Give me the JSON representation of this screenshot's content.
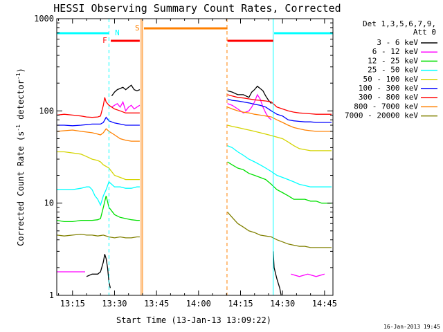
{
  "chart_data": {
    "type": "line",
    "title": "HESSI Observing Summary Count Rates, Corrected",
    "xlabel": "Start Time (13-Jan-13 13:09:22)",
    "ylabel_main": "Corrected Count Rate (s",
    "ylabel_sup1": "-1",
    "ylabel_mid": " detector",
    "ylabel_sup2": "-1",
    "ylabel_end": ")",
    "y_scale": "log",
    "ylim": [
      1,
      1000
    ],
    "xlim": [
      "13:09:22",
      "14:48:00"
    ],
    "x_ticks": [
      "13:15",
      "13:30",
      "13:45",
      "14:00",
      "14:15",
      "14:30",
      "14:45"
    ],
    "y_ticks": [
      "1",
      "10",
      "100",
      "1000"
    ],
    "footer": "16-Jan-2013 19:45",
    "legend": {
      "header1": "Det 1,3,5,6,7,9,",
      "header2": "Att 0",
      "entries": [
        {
          "label": "3 - 6 keV",
          "color": "#000000"
        },
        {
          "label": "6 - 12 keV",
          "color": "#ff00ff"
        },
        {
          "label": "12 - 25 keV",
          "color": "#00e000"
        },
        {
          "label": "25 - 50 keV",
          "color": "#00ffff"
        },
        {
          "label": "50 - 100 keV",
          "color": "#d4d400"
        },
        {
          "label": "100 - 300 keV",
          "color": "#0000ff"
        },
        {
          "label": "300 - 800 keV",
          "color": "#ff0000"
        },
        {
          "label": "800 - 7000 keV",
          "color": "#ff8000"
        },
        {
          "label": "7000 - 20000 keV",
          "color": "#808000"
        }
      ]
    },
    "status_bars": [
      {
        "label": "",
        "color": "#00ffff",
        "start": "13:09:30",
        "end": "13:28:00"
      },
      {
        "label": "N",
        "color": "#00ffff",
        "start": "13:28:40",
        "end": "13:29:00"
      },
      {
        "label": "F",
        "color": "#ff0000",
        "start": "13:28:40",
        "end": "13:39:00"
      },
      {
        "label": "S",
        "color": "#ff8000",
        "start": "13:40:30",
        "end": "14:10:20"
      },
      {
        "label": "",
        "color": "#ff0000",
        "start": "14:10:20",
        "end": "14:26:40"
      },
      {
        "label": "",
        "color": "#00ffff",
        "start": "14:27:00",
        "end": "14:48:00"
      }
    ],
    "markers": [
      {
        "time": "13:28:00",
        "color": "#00ffff",
        "style": "dashed"
      },
      {
        "time": "13:39:30",
        "color": "#ff8000",
        "style": "solid"
      },
      {
        "time": "13:40:00",
        "color": "#ff8000",
        "style": "solid"
      },
      {
        "time": "14:10:10",
        "color": "#ff8000",
        "style": "dashed"
      },
      {
        "time": "14:26:40",
        "color": "#00ffff",
        "style": "solid"
      },
      {
        "time": "14:48:00",
        "color": "#00ffff",
        "style": "dashed"
      }
    ],
    "series": [
      {
        "name": "3 - 6 keV",
        "color": "#000000",
        "segments": [
          {
            "x": [
              "13:20",
              "13:22",
              "13:24",
              "13:25",
              "13:26",
              "13:26:30",
              "13:27",
              "13:27:30",
              "13:28",
              "13:28:30"
            ],
            "y": [
              1.6,
              1.7,
              1.7,
              1.8,
              2.3,
              2.8,
              2.5,
              2.0,
              1.4,
              1.2
            ]
          },
          {
            "x": [
              "13:29",
              "13:30",
              "13:31",
              "13:32",
              "13:33",
              "13:34",
              "13:35",
              "13:36",
              "13:37",
              "13:38",
              "13:39"
            ],
            "y": [
              145,
              160,
              170,
              175,
              180,
              170,
              180,
              190,
              170,
              165,
              170
            ]
          },
          {
            "x": [
              "14:10:20",
              "14:12",
              "14:14",
              "14:16",
              "14:18",
              "14:19",
              "14:20",
              "14:21",
              "14:22",
              "14:23",
              "14:24",
              "14:25",
              "14:26"
            ],
            "y": [
              165,
              160,
              150,
              150,
              140,
              160,
              170,
              185,
              175,
              165,
              145,
              130,
              120
            ]
          },
          {
            "x": [
              "14:26:40",
              "14:27",
              "14:28",
              "14:29",
              "14:29:30"
            ],
            "y": [
              3.0,
              2.0,
              1.5,
              1.2,
              1.0
            ]
          }
        ]
      },
      {
        "name": "6 - 12 keV",
        "color": "#ff00ff",
        "segments": [
          {
            "x": [
              "13:09:30",
              "13:12",
              "13:15",
              "13:18",
              "13:19:30"
            ],
            "y": [
              1.8,
              1.8,
              1.8,
              1.8,
              1.8
            ]
          },
          {
            "x": [
              "13:29",
              "13:30",
              "13:31",
              "13:32",
              "13:33",
              "13:34",
              "13:35",
              "13:36",
              "13:37",
              "13:38",
              "13:39"
            ],
            "y": [
              110,
              115,
              120,
              110,
              125,
              100,
              110,
              115,
              105,
              110,
              115
            ]
          },
          {
            "x": [
              "14:10:20",
              "14:12",
              "14:14",
              "14:16",
              "14:18",
              "14:19",
              "14:20",
              "14:21",
              "14:22",
              "14:23",
              "14:24",
              "14:25",
              "14:26"
            ],
            "y": [
              120,
              115,
              105,
              95,
              100,
              110,
              125,
              150,
              135,
              110,
              95,
              85,
              80
            ]
          },
          {
            "x": [
              "14:33",
              "14:36",
              "14:39",
              "14:42",
              "14:45"
            ],
            "y": [
              1.7,
              1.6,
              1.7,
              1.6,
              1.7
            ]
          }
        ]
      },
      {
        "name": "12 - 25 keV",
        "color": "#00e000",
        "segments": [
          {
            "x": [
              "13:09:30",
              "13:12",
              "13:15",
              "13:18",
              "13:20",
              "13:22",
              "13:24",
              "13:25",
              "13:26",
              "13:27",
              "13:28",
              "13:30",
              "13:32",
              "13:34",
              "13:36",
              "13:38",
              "13:39"
            ],
            "y": [
              6.5,
              6.3,
              6.3,
              6.5,
              6.5,
              6.5,
              6.6,
              6.8,
              9,
              12,
              9,
              7.5,
              7,
              6.8,
              6.6,
              6.5,
              6.5
            ]
          },
          {
            "x": [
              "14:10:20",
              "14:12",
              "14:14",
              "14:16",
              "14:18",
              "14:20",
              "14:22",
              "14:24",
              "14:26",
              "14:28",
              "14:30",
              "14:32",
              "14:34",
              "14:36",
              "14:38",
              "14:40",
              "14:42",
              "14:44",
              "14:46",
              "14:47:30"
            ],
            "y": [
              28,
              26,
              24,
              23,
              21,
              20,
              19,
              18,
              16,
              14,
              13,
              12,
              11,
              11,
              11,
              10.5,
              10.5,
              10,
              10,
              10
            ]
          }
        ]
      },
      {
        "name": "25 - 50 keV",
        "color": "#00ffff",
        "segments": [
          {
            "x": [
              "13:09:30",
              "13:12",
              "13:15",
              "13:18",
              "13:20",
              "13:21",
              "13:22",
              "13:23",
              "13:24",
              "13:25",
              "13:26",
              "13:27",
              "13:28",
              "13:29",
              "13:30",
              "13:32",
              "13:34",
              "13:36",
              "13:38",
              "13:39"
            ],
            "y": [
              14,
              14,
              14,
              14.5,
              15,
              15,
              14,
              12,
              11,
              9.5,
              12,
              14,
              17,
              16,
              15,
              15,
              14.5,
              14.5,
              15,
              15
            ]
          },
          {
            "x": [
              "14:10:20",
              "14:12",
              "14:14",
              "14:16",
              "14:18",
              "14:20",
              "14:22",
              "14:24",
              "14:26",
              "14:28",
              "14:30",
              "14:32",
              "14:34",
              "14:36",
              "14:38",
              "14:40",
              "14:42",
              "14:44",
              "14:46",
              "14:47:30"
            ],
            "y": [
              42,
              40,
              36,
              33,
              30,
              28,
              26,
              24,
              22,
              20,
              19,
              18,
              17,
              16,
              15.5,
              15,
              15,
              15,
              15,
              15
            ]
          }
        ]
      },
      {
        "name": "50 - 100 keV",
        "color": "#d4d400",
        "segments": [
          {
            "x": [
              "13:09:30",
              "13:12",
              "13:15",
              "13:18",
              "13:20",
              "13:22",
              "13:24",
              "13:25",
              "13:26",
              "13:27",
              "13:28",
              "13:30",
              "13:32",
              "13:34",
              "13:36",
              "13:38",
              "13:39"
            ],
            "y": [
              36,
              36,
              35,
              34,
              32,
              30,
              29,
              28,
              26,
              25,
              24,
              20,
              19,
              18,
              18,
              18,
              18
            ]
          },
          {
            "x": [
              "14:10:20",
              "14:12",
              "14:14",
              "14:16",
              "14:18",
              "14:20",
              "14:22",
              "14:24",
              "14:26",
              "14:28",
              "14:30",
              "14:32",
              "14:34",
              "14:36",
              "14:38",
              "14:40",
              "14:42",
              "14:44",
              "14:46",
              "14:47:30"
            ],
            "y": [
              70,
              68,
              66,
              64,
              62,
              60,
              58,
              56,
              54,
              52,
              50,
              46,
              42,
              39,
              38,
              37,
              37,
              37,
              37,
              37
            ]
          }
        ]
      },
      {
        "name": "100 - 300 keV",
        "color": "#0000ff",
        "segments": [
          {
            "x": [
              "13:09:30",
              "13:12",
              "13:15",
              "13:18",
              "13:20",
              "13:22",
              "13:24",
              "13:25",
              "13:26",
              "13:27",
              "13:28",
              "13:30",
              "13:32",
              "13:34",
              "13:36",
              "13:38",
              "13:39"
            ],
            "y": [
              70,
              70,
              69,
              70,
              71,
              72,
              72,
              72,
              75,
              85,
              78,
              74,
              72,
              70,
              70,
              70,
              70
            ]
          },
          {
            "x": [
              "14:10:20",
              "14:12",
              "14:14",
              "14:16",
              "14:18",
              "14:20",
              "14:22",
              "14:24",
              "14:26",
              "14:28",
              "14:30",
              "14:32",
              "14:34",
              "14:36",
              "14:38",
              "14:40",
              "14:42",
              "14:44",
              "14:46",
              "14:47:30"
            ],
            "y": [
              135,
              130,
              128,
              125,
              122,
              118,
              115,
              110,
              100,
              92,
              88,
              80,
              78,
              77,
              76,
              76,
              75,
              75,
              75,
              75
            ]
          }
        ]
      },
      {
        "name": "300 - 800 keV",
        "color": "#ff0000",
        "segments": [
          {
            "x": [
              "13:09:30",
              "13:12",
              "13:15",
              "13:18",
              "13:20",
              "13:22",
              "13:24",
              "13:25",
              "13:26",
              "13:26:30",
              "13:27",
              "13:28",
              "13:30",
              "13:32",
              "13:34",
              "13:36",
              "13:38",
              "13:39"
            ],
            "y": [
              90,
              92,
              90,
              88,
              86,
              85,
              86,
              88,
              115,
              140,
              125,
              115,
              105,
              100,
              95,
              95,
              95,
              95
            ]
          },
          {
            "x": [
              "14:10:20",
              "14:12",
              "14:14",
              "14:16",
              "14:18",
              "14:20",
              "14:22",
              "14:24",
              "14:26",
              "14:28",
              "14:30",
              "14:32",
              "14:34",
              "14:36",
              "14:38",
              "14:40",
              "14:42",
              "14:44",
              "14:46",
              "14:47:30"
            ],
            "y": [
              150,
              145,
              140,
              138,
              135,
              132,
              130,
              128,
              125,
              110,
              105,
              100,
              97,
              95,
              94,
              93,
              92,
              92,
              92,
              92
            ]
          }
        ]
      },
      {
        "name": "800 - 7000 keV",
        "color": "#ff8000",
        "segments": [
          {
            "x": [
              "13:09:30",
              "13:12",
              "13:15",
              "13:18",
              "13:20",
              "13:22",
              "13:24",
              "13:25",
              "13:26",
              "13:27",
              "13:28",
              "13:30",
              "13:32",
              "13:34",
              "13:36",
              "13:38",
              "13:39"
            ],
            "y": [
              60,
              61,
              62,
              60,
              59,
              58,
              56,
              55,
              58,
              64,
              60,
              55,
              50,
              48,
              47,
              47,
              47
            ]
          },
          {
            "x": [
              "14:10:20",
              "14:12",
              "14:14",
              "14:16",
              "14:18",
              "14:20",
              "14:22",
              "14:24",
              "14:26",
              "14:28",
              "14:30",
              "14:32",
              "14:34",
              "14:36",
              "14:38",
              "14:40",
              "14:42",
              "14:44",
              "14:46",
              "14:47:30"
            ],
            "y": [
              110,
              105,
              100,
              97,
              95,
              92,
              90,
              88,
              86,
              80,
              75,
              70,
              66,
              64,
              62,
              61,
              60,
              60,
              60,
              60
            ]
          }
        ]
      },
      {
        "name": "7000 - 20000 keV",
        "color": "#808000",
        "segments": [
          {
            "x": [
              "13:09:30",
              "13:12",
              "13:15",
              "13:18",
              "13:20",
              "13:22",
              "13:24",
              "13:26",
              "13:28",
              "13:30",
              "13:32",
              "13:34",
              "13:36",
              "13:38",
              "13:39"
            ],
            "y": [
              4.5,
              4.4,
              4.5,
              4.6,
              4.5,
              4.5,
              4.4,
              4.5,
              4.3,
              4.2,
              4.3,
              4.2,
              4.2,
              4.3,
              4.3
            ]
          },
          {
            "x": [
              "14:10:20",
              "14:12",
              "14:14",
              "14:16",
              "14:18",
              "14:20",
              "14:22",
              "14:24",
              "14:26",
              "14:28",
              "14:30",
              "14:32",
              "14:34",
              "14:36",
              "14:38",
              "14:40",
              "14:42",
              "14:44",
              "14:46",
              "14:47:30"
            ],
            "y": [
              8,
              7,
              6,
              5.5,
              5,
              4.8,
              4.5,
              4.4,
              4.3,
              4,
              3.8,
              3.6,
              3.5,
              3.4,
              3.4,
              3.3,
              3.3,
              3.3,
              3.3,
              3.3
            ]
          }
        ]
      }
    ]
  }
}
